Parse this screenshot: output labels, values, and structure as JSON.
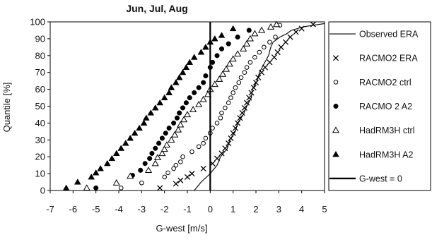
{
  "chart_data": {
    "type": "scatter",
    "title": "Jun, Jul, Aug",
    "xlabel": "G-west [m/s]",
    "ylabel": "Quantile   [%]",
    "xlim": [
      -7,
      5
    ],
    "ylim": [
      0,
      100
    ],
    "xticks": [
      -7,
      -6,
      -5,
      -4,
      -3,
      -2,
      -1,
      0,
      1,
      2,
      3,
      4,
      5
    ],
    "yticks": [
      0,
      10,
      20,
      30,
      40,
      50,
      60,
      70,
      80,
      90,
      100
    ],
    "grid": false,
    "legend_position": "right",
    "vertical_reference_line": {
      "x": 0,
      "name": "G-west = 0"
    },
    "series": [
      {
        "name": "Observed ERA",
        "marker": "line",
        "x": [
          -0.7,
          -0.4,
          0.0,
          0.3,
          0.45,
          0.75,
          0.85,
          1.1,
          1.2,
          1.45,
          1.6,
          1.8,
          1.85,
          2.05,
          2.15,
          2.35,
          2.55,
          2.65,
          2.75,
          2.95,
          3.05,
          3.35,
          3.55,
          3.8,
          4.05,
          4.5,
          5.0
        ],
        "y": [
          0,
          5,
          10,
          15,
          20,
          25,
          30,
          35,
          40,
          45,
          50,
          55,
          60,
          65,
          70,
          75,
          80,
          85,
          88,
          90,
          91,
          93,
          95,
          96,
          97,
          98,
          99
        ]
      },
      {
        "name": "RACMO2 ERA",
        "marker": "x",
        "x": [
          -2.2,
          -1.5,
          -1.3,
          -1.0,
          -0.8,
          -0.3,
          0.1,
          0.3,
          0.5,
          0.65,
          0.8,
          0.9,
          1.0,
          1.1,
          1.2,
          1.3,
          1.4,
          1.5,
          1.6,
          1.7,
          1.8,
          1.9,
          2.0,
          2.1,
          2.25,
          2.4,
          2.6,
          2.8,
          2.95,
          3.1,
          3.3,
          3.5,
          3.75,
          4.0,
          4.5
        ],
        "y": [
          1.5,
          4,
          6,
          8,
          10,
          13,
          16,
          19,
          22,
          25,
          28,
          31,
          34,
          37,
          40,
          43,
          46,
          49,
          52,
          55,
          58,
          61,
          64,
          67,
          70,
          73,
          76,
          79,
          82,
          85,
          88,
          91,
          94,
          96,
          98.5
        ]
      },
      {
        "name": "RACMO2 ctrl",
        "marker": "circle-open",
        "x": [
          -3.9,
          -3.0,
          -2.0,
          -1.85,
          -1.6,
          -1.5,
          -1.3,
          -1.2,
          -0.8,
          -0.5,
          -0.3,
          -0.2,
          0.0,
          0.1,
          0.3,
          0.45,
          0.5,
          0.65,
          0.8,
          0.9,
          1.0,
          1.1,
          1.25,
          1.35,
          1.5,
          1.6,
          1.75,
          1.95,
          2.15,
          2.35,
          2.6,
          2.85,
          3.05
        ],
        "y": [
          1.5,
          4.5,
          8,
          10.5,
          13,
          15,
          17,
          20,
          23,
          26,
          28,
          31,
          34,
          37,
          40,
          43,
          46,
          49,
          52,
          55,
          58,
          61,
          64,
          67,
          70,
          73,
          76,
          79,
          82,
          85,
          88,
          91,
          98
        ]
      },
      {
        "name": "RACMO 2 A2",
        "marker": "circle-filled",
        "x": [
          -5.0,
          -3.4,
          -3.05,
          -2.85,
          -2.65,
          -2.55,
          -2.4,
          -2.25,
          -2.1,
          -1.95,
          -1.8,
          -1.6,
          -1.45,
          -1.35,
          -1.2,
          -1.05,
          -0.9,
          -0.7,
          -0.5,
          -0.3,
          -0.2,
          0.0,
          0.1,
          0.3,
          0.5,
          0.8,
          1.2,
          1.7
        ],
        "y": [
          1.5,
          9,
          12,
          16,
          19,
          22,
          25,
          28,
          31,
          34,
          37,
          40,
          43,
          46,
          49,
          52,
          55,
          58,
          61,
          64,
          68,
          73,
          76,
          80,
          84,
          87,
          91,
          95
        ]
      },
      {
        "name": "HadRM3H ctrl",
        "marker": "triangle-open",
        "x": [
          -5.4,
          -4.1,
          -3.5,
          -2.7,
          -2.4,
          -2.3,
          -2.1,
          -2.0,
          -1.9,
          -1.7,
          -1.55,
          -1.4,
          -1.3,
          -1.15,
          -1.0,
          -0.75,
          -0.5,
          -0.3,
          -0.1,
          0.0,
          0.2,
          0.4,
          0.55,
          0.7,
          0.85,
          1.0,
          1.2,
          1.45,
          1.6,
          1.75,
          1.95,
          2.25,
          2.65,
          2.9
        ],
        "y": [
          1.5,
          4.5,
          8.5,
          12,
          16,
          19.5,
          22,
          24.5,
          27,
          30,
          33,
          36,
          39,
          42,
          45,
          48,
          51,
          54,
          57,
          60,
          63,
          66,
          69,
          72,
          75,
          78,
          81,
          84,
          87,
          90,
          93,
          95,
          97,
          98.5
        ]
      },
      {
        "name": "HadRM3H A2",
        "marker": "triangle-filled",
        "x": [
          -6.3,
          -5.8,
          -5.2,
          -5.0,
          -4.8,
          -4.5,
          -4.3,
          -4.1,
          -3.9,
          -3.7,
          -3.5,
          -3.3,
          -3.1,
          -2.9,
          -2.8,
          -2.6,
          -2.4,
          -2.2,
          -2.0,
          -1.8,
          -1.7,
          -1.5,
          -1.35,
          -1.2,
          -1.05,
          -0.9,
          -0.7,
          -0.4,
          -0.2,
          0.0,
          0.2,
          0.5,
          1.0
        ],
        "y": [
          1.5,
          5,
          8,
          10.5,
          13,
          16,
          19,
          22,
          25,
          28,
          31,
          34,
          37,
          40,
          43,
          46,
          49,
          52,
          55,
          58,
          61,
          64,
          67,
          70,
          73,
          76,
          79,
          82,
          85,
          88,
          90,
          92,
          96
        ]
      }
    ]
  }
}
